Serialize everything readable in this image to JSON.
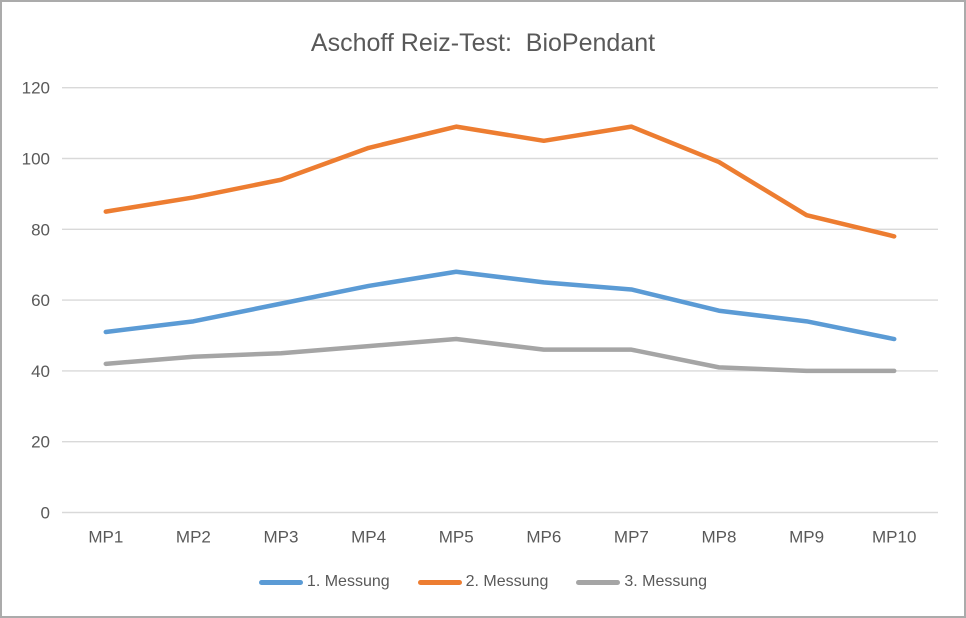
{
  "colors": {
    "text": "#595959",
    "grid": "#d9d9d9",
    "background": "#ffffff",
    "frame_border": "#ababab"
  },
  "chart_data": {
    "type": "line",
    "title": "Aschoff Reiz-Test:  BioPendant",
    "categories": [
      "MP1",
      "MP2",
      "MP3",
      "MP4",
      "MP5",
      "MP6",
      "MP7",
      "MP8",
      "MP9",
      "MP10"
    ],
    "series": [
      {
        "name": "1. Messung",
        "color": "#5b9bd5",
        "values": [
          51,
          54,
          59,
          64,
          68,
          65,
          63,
          57,
          54,
          49
        ]
      },
      {
        "name": "2. Messung",
        "color": "#ed7d31",
        "values": [
          85,
          89,
          94,
          103,
          109,
          105,
          109,
          99,
          84,
          78
        ]
      },
      {
        "name": "3. Messung",
        "color": "#a5a5a5",
        "values": [
          42,
          44,
          45,
          47,
          49,
          46,
          46,
          41,
          40,
          40
        ]
      }
    ],
    "xlabel": "",
    "ylabel": "",
    "ylim": [
      0,
      120
    ],
    "yticks": [
      0,
      20,
      40,
      60,
      80,
      100,
      120
    ],
    "grid": true,
    "legend_position": "bottom"
  }
}
